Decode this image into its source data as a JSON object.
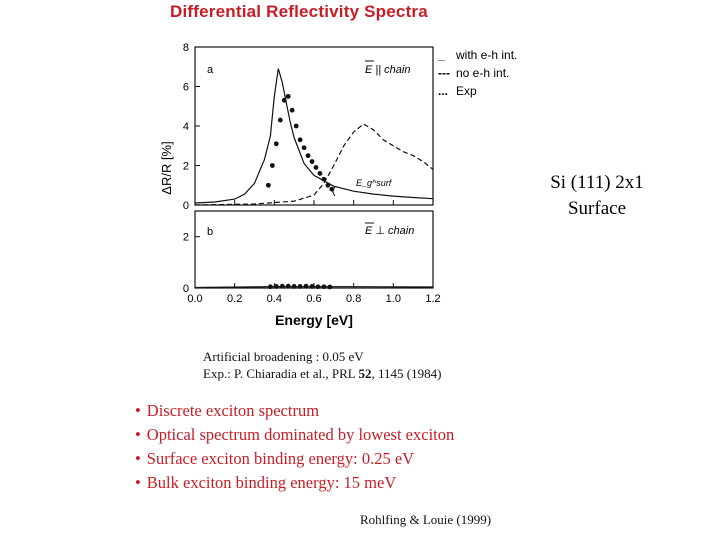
{
  "title": "Differential Reflectivity Spectra",
  "side_label": {
    "line1": "Si (111) 2x1",
    "line2": "Surface"
  },
  "legend": {
    "items": [
      {
        "symbol": "_",
        "label": "with e-h int."
      },
      {
        "symbol": "---",
        "label": "no e-h int."
      },
      {
        "symbol": "...",
        "label": "Exp"
      }
    ]
  },
  "notes": {
    "broadening": "Artificial broadening :  0.05 eV",
    "exp_prefix": "Exp.: P. Chiaradia et al., PRL ",
    "exp_volume": "52",
    "exp_suffix": ", 1145 (1984)"
  },
  "bullets": [
    "Discrete exciton spectrum",
    "Optical spectrum dominated by lowest exciton",
    "Surface exciton binding energy: 0.25 eV",
    "Bulk exciton binding energy: 15 meV"
  ],
  "citation": "Rohlfing & Louie (1999)",
  "chart_data": [
    {
      "type": "line",
      "panel_label": "a",
      "polarization_label": "E || chain",
      "annotation": "E_g^surf",
      "ylabel": "ΔR/R [%]",
      "xlim": [
        0.0,
        1.2
      ],
      "ylim": [
        0,
        8
      ],
      "yticks": [
        "0",
        "2",
        "4",
        "6",
        "8"
      ],
      "series": [
        {
          "name": "with e-h int.",
          "style": "solid",
          "x": [
            0.0,
            0.1,
            0.2,
            0.25,
            0.3,
            0.35,
            0.38,
            0.4,
            0.42,
            0.44,
            0.46,
            0.48,
            0.5,
            0.55,
            0.6,
            0.7,
            0.8,
            0.9,
            1.0,
            1.1,
            1.2
          ],
          "y": [
            0.1,
            0.15,
            0.3,
            0.55,
            1.1,
            2.3,
            3.5,
            5.5,
            6.9,
            6.2,
            5.2,
            4.2,
            3.4,
            2.1,
            1.5,
            0.95,
            0.7,
            0.55,
            0.45,
            0.38,
            0.32
          ]
        },
        {
          "name": "no e-h int.",
          "style": "dashed",
          "x": [
            0.0,
            0.3,
            0.5,
            0.6,
            0.65,
            0.7,
            0.75,
            0.8,
            0.85,
            0.9,
            0.95,
            1.0,
            1.05,
            1.1,
            1.15,
            1.2
          ],
          "y": [
            0.0,
            0.05,
            0.2,
            0.5,
            1.1,
            2.0,
            3.0,
            3.7,
            4.1,
            3.8,
            3.3,
            3.0,
            2.7,
            2.5,
            2.2,
            1.8
          ]
        },
        {
          "name": "Exp",
          "style": "dots",
          "x": [
            0.37,
            0.39,
            0.41,
            0.43,
            0.45,
            0.47,
            0.49,
            0.51,
            0.53,
            0.55,
            0.57,
            0.59,
            0.61,
            0.63,
            0.65,
            0.67,
            0.69
          ],
          "y": [
            1.0,
            2.0,
            3.1,
            4.3,
            5.3,
            5.5,
            4.8,
            4.0,
            3.3,
            2.9,
            2.5,
            2.2,
            1.9,
            1.6,
            1.3,
            1.0,
            0.8
          ]
        }
      ]
    },
    {
      "type": "line",
      "panel_label": "b",
      "polarization_label": "E ⊥ chain",
      "xlabel": "Energy [eV]",
      "xlim": [
        0.0,
        1.2
      ],
      "xticks": [
        "0.0",
        "0.2",
        "0.4",
        "0.6",
        "0.8",
        "1.0",
        "1.2"
      ],
      "ylim": [
        0,
        3
      ],
      "yticks": [
        "0",
        "2"
      ],
      "series": [
        {
          "name": "with e-h int.",
          "style": "solid",
          "x": [
            0.0,
            0.4,
            0.8,
            1.2
          ],
          "y": [
            0.02,
            0.05,
            0.05,
            0.04
          ]
        },
        {
          "name": "Exp",
          "style": "dots",
          "x": [
            0.38,
            0.41,
            0.44,
            0.47,
            0.5,
            0.53,
            0.56,
            0.59,
            0.62,
            0.65,
            0.68
          ],
          "y": [
            0.05,
            0.06,
            0.07,
            0.07,
            0.06,
            0.06,
            0.07,
            0.06,
            0.05,
            0.05,
            0.04
          ]
        }
      ]
    }
  ]
}
